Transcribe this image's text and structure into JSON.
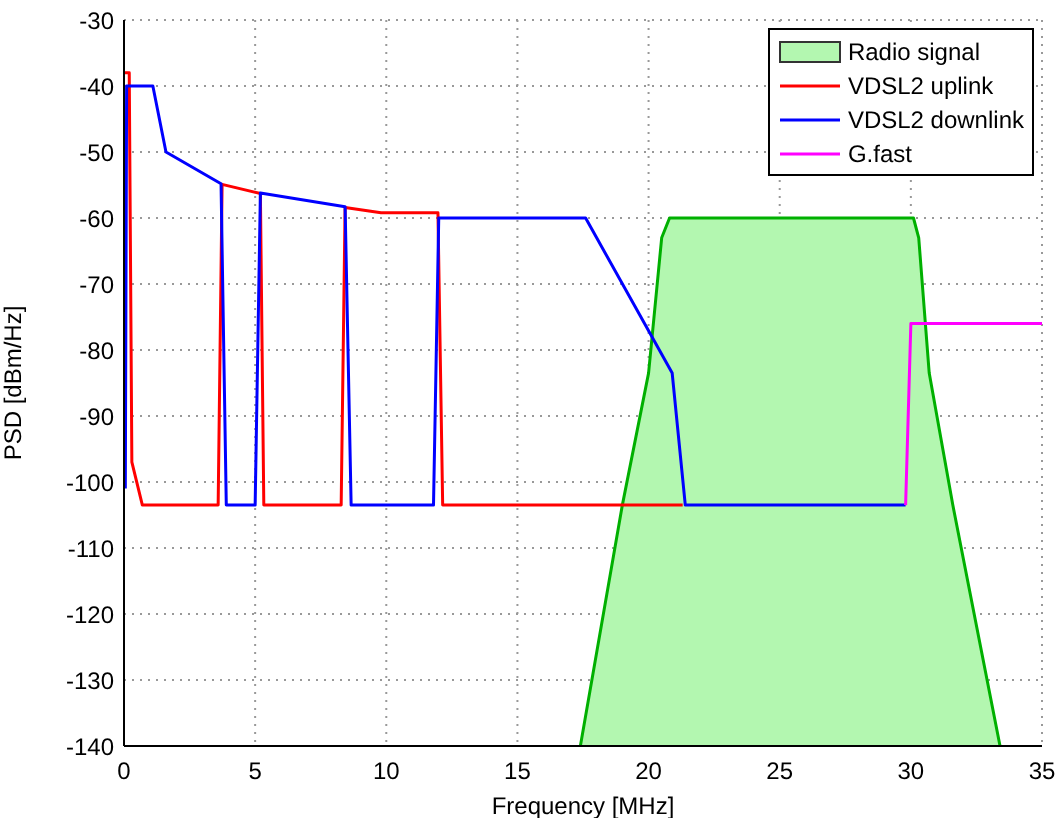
{
  "chart_data": {
    "type": "line",
    "xlabel": "Frequency [MHz]",
    "ylabel": "PSD [dBm/Hz]",
    "xlim": [
      0,
      35
    ],
    "ylim": [
      -140,
      -30
    ],
    "xticks": [
      0,
      5,
      10,
      15,
      20,
      25,
      30,
      35
    ],
    "yticks": [
      -140,
      -130,
      -120,
      -110,
      -100,
      -90,
      -80,
      -70,
      -60,
      -50,
      -40,
      -30
    ],
    "grid": true,
    "legend": "top right",
    "line_style": "solid",
    "marker": "none",
    "series": [
      {
        "name": "Radio signal",
        "type": "area",
        "color": "#b3f7b0",
        "x": [
          17.4,
          19.0,
          20.0,
          20.5,
          20.8,
          30.1,
          30.3,
          30.7,
          31.6,
          33.4
        ],
        "values": [
          -140,
          -103.5,
          -83.5,
          -63,
          -60,
          -60,
          -63,
          -83.5,
          -103.5,
          -140
        ]
      },
      {
        "name": "VDSL2 uplink",
        "color": "#ff0000",
        "x": [
          0,
          0.2,
          0.3,
          0.7,
          3.59,
          3.74,
          5.2,
          5.33,
          8.28,
          8.43,
          9.8,
          11.97,
          12.15,
          21.3
        ],
        "values": [
          -38,
          -38,
          -97,
          -103.5,
          -103.5,
          -54.9,
          -56.3,
          -103.5,
          -103.5,
          -58.4,
          -59.2,
          -59.2,
          -103.5,
          -103.5
        ]
      },
      {
        "name": "VDSL2 downlink",
        "color": "#0000ff",
        "x": [
          0.05,
          0.1,
          1.1,
          1.6,
          3.7,
          3.9,
          5.0,
          5.2,
          8.43,
          8.66,
          11.8,
          12.0,
          17.6,
          20.9,
          21.4,
          29.8
        ],
        "values": [
          -101,
          -40,
          -40,
          -50,
          -54.8,
          -103.5,
          -103.5,
          -56.2,
          -58.3,
          -103.5,
          -103.5,
          -60,
          -60,
          -83.5,
          -103.5,
          -103.5
        ]
      },
      {
        "name": "G.fast",
        "color": "#ff00ff",
        "x": [
          29.8,
          30.0,
          35
        ],
        "values": [
          -103.5,
          -76,
          -76
        ]
      }
    ]
  }
}
